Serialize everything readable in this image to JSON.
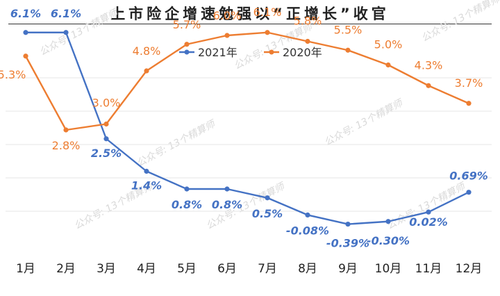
{
  "title": "上市险企增速勉强以“正增长”收官",
  "watermark": "公众号: 13个精算师",
  "chart_data": {
    "type": "line",
    "title": "上市险企增速勉强以“正增长”收官",
    "categories": [
      "1月",
      "2月",
      "3月",
      "4月",
      "5月",
      "6月",
      "7月",
      "8月",
      "9月",
      "10月",
      "11月",
      "12月"
    ],
    "series": [
      {
        "name": "2021年",
        "color": "#4472C4",
        "values": [
          6.1,
          6.1,
          2.5,
          1.4,
          0.8,
          0.8,
          0.5,
          -0.08,
          -0.39,
          -0.3,
          0.02,
          0.69
        ],
        "labels": [
          "6.1%",
          "6.1%",
          "2.5%",
          "1.4%",
          "0.8%",
          "0.8%",
          "0.5%",
          "-0.08%",
          "-0.39%",
          "-0.30%",
          "0.02%",
          "0.69%"
        ]
      },
      {
        "name": "2020年",
        "color": "#ED7D31",
        "values": [
          5.3,
          2.8,
          3.0,
          4.8,
          5.7,
          6.0,
          6.1,
          5.8,
          5.5,
          5.0,
          4.3,
          3.7
        ],
        "labels": [
          "5.3%",
          "2.8%",
          "3.0%",
          "4.8%",
          "5.7%",
          "6.0%",
          "6.1%",
          "5.8%",
          "5.5%",
          "5.0%",
          "4.3%",
          "3.7%"
        ]
      }
    ],
    "ylim": [
      -1,
      7
    ],
    "grid": true,
    "legend": "top-center"
  }
}
